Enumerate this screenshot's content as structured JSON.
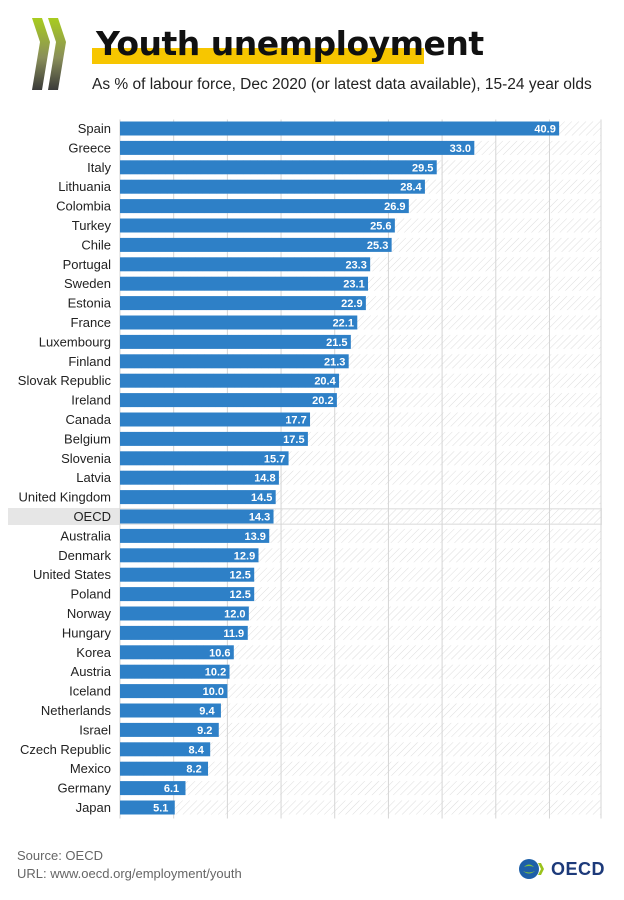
{
  "header": {
    "title": "Youth unemployment",
    "subtitle": "As % of labour force, Dec 2020 (or latest data available), 15-24 year olds"
  },
  "chart_data": {
    "type": "bar",
    "orientation": "horizontal",
    "categories": [
      "Spain",
      "Greece",
      "Italy",
      "Lithuania",
      "Colombia",
      "Turkey",
      "Chile",
      "Portugal",
      "Sweden",
      "Estonia",
      "France",
      "Luxembourg",
      "Finland",
      "Slovak Republic",
      "Ireland",
      "Canada",
      "Belgium",
      "Slovenia",
      "Latvia",
      "United Kingdom",
      "OECD",
      "Australia",
      "Denmark",
      "United States",
      "Poland",
      "Norway",
      "Hungary",
      "Korea",
      "Austria",
      "Iceland",
      "Netherlands",
      "Israel",
      "Czech Republic",
      "Mexico",
      "Germany",
      "Japan"
    ],
    "values": [
      40.9,
      33.0,
      29.5,
      28.4,
      26.9,
      25.6,
      25.3,
      23.3,
      23.1,
      22.9,
      22.1,
      21.5,
      21.3,
      20.4,
      20.2,
      17.7,
      17.5,
      15.7,
      14.8,
      14.5,
      14.3,
      13.9,
      12.9,
      12.5,
      12.5,
      12.0,
      11.9,
      10.6,
      10.2,
      10.0,
      9.4,
      9.2,
      8.4,
      8.2,
      6.1,
      5.1
    ],
    "value_labels": [
      "40.9",
      "33.0",
      "29.5",
      "28.4",
      "26.9",
      "25.6",
      "25.3",
      "23.3",
      "23.1",
      "22.9",
      "22.1",
      "21.5",
      "21.3",
      "20.4",
      "20.2",
      "17.7",
      "17.5",
      "15.7",
      "14.8",
      "14.5",
      "14.3",
      "13.9",
      "12.9",
      "12.5",
      "12.5",
      "12.0",
      "11.9",
      "10.6",
      "10.2",
      "10.0",
      "9.4",
      "9.2",
      "8.4",
      "8.2",
      "6.1",
      "5.1"
    ],
    "highlight": "OECD",
    "xlim": [
      0,
      44.8
    ],
    "grid": true,
    "bar_color": "#2e80c7",
    "highlight_color": "#e6e6e6"
  },
  "footer": {
    "source": "Source: OECD",
    "url": "URL: www.oecd.org/employment/youth",
    "logo_text": "OECD"
  },
  "colors": {
    "accent_yellow": "#f7c600",
    "chevron_green": "#9bc31c",
    "logo_blue": "#1d3a7a"
  }
}
